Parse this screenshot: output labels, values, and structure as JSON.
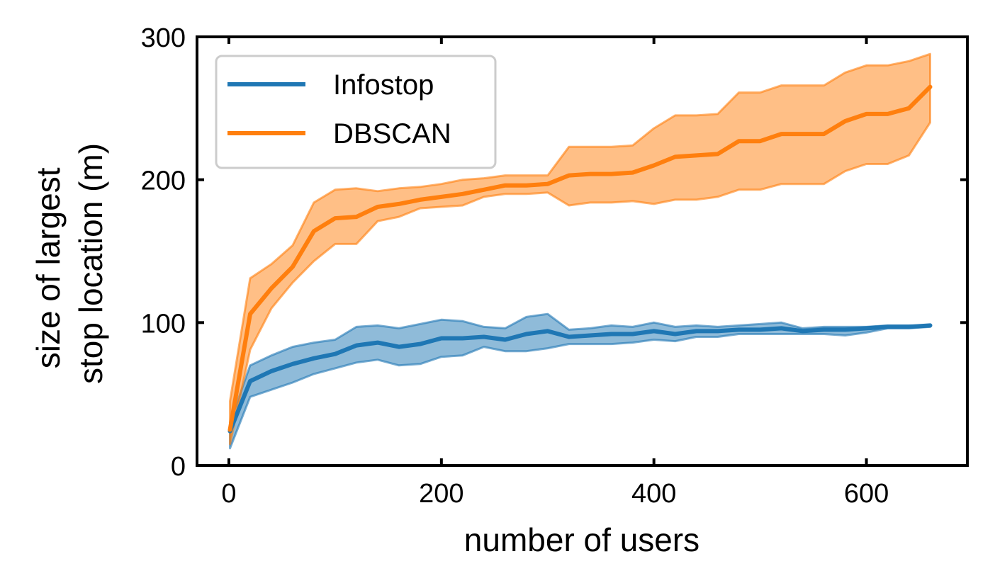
{
  "chart_data": {
    "type": "line",
    "title": "",
    "xlabel": "number of users",
    "ylabel": [
      "size of largest",
      "stop location (m)"
    ],
    "xlim": [
      -30,
      695
    ],
    "ylim": [
      0,
      300
    ],
    "xticks": [
      0,
      200,
      400,
      600
    ],
    "yticks": [
      0,
      100,
      200,
      300
    ],
    "x": [
      1,
      20,
      40,
      60,
      80,
      100,
      120,
      140,
      160,
      180,
      200,
      220,
      240,
      260,
      280,
      300,
      320,
      340,
      360,
      380,
      400,
      420,
      440,
      460,
      480,
      500,
      520,
      540,
      560,
      580,
      600,
      620,
      640,
      660
    ],
    "series": [
      {
        "name": "Infostop",
        "color": "#1f77b4",
        "values": [
          24,
          59,
          66,
          71,
          75,
          78,
          84,
          86,
          83,
          85,
          89,
          89,
          90,
          88,
          92,
          94,
          90,
          91,
          92,
          92,
          94,
          92,
          94,
          94,
          95,
          95,
          96,
          94,
          95,
          95,
          96,
          97,
          97,
          98
        ],
        "upper": [
          30,
          70,
          77,
          83,
          86,
          88,
          97,
          98,
          96,
          99,
          102,
          101,
          97,
          96,
          104,
          106,
          95,
          96,
          98,
          97,
          100,
          97,
          98,
          97,
          98,
          99,
          100,
          96,
          97,
          97,
          97,
          98,
          98,
          98
        ],
        "lower": [
          12,
          48,
          53,
          58,
          64,
          68,
          72,
          74,
          70,
          71,
          76,
          77,
          83,
          80,
          80,
          82,
          85,
          85,
          85,
          86,
          88,
          87,
          90,
          90,
          92,
          92,
          92,
          92,
          92,
          91,
          93,
          96,
          96,
          97
        ]
      },
      {
        "name": "DBSCAN",
        "color": "#ff7f0e",
        "values": [
          25,
          106,
          124,
          139,
          164,
          173,
          174,
          181,
          183,
          186,
          188,
          190,
          193,
          196,
          196,
          197,
          203,
          204,
          204,
          205,
          210,
          216,
          217,
          218,
          227,
          227,
          232,
          232,
          232,
          241,
          246,
          246,
          250,
          265
        ],
        "upper": [
          45,
          131,
          141,
          154,
          184,
          193,
          194,
          192,
          194,
          195,
          197,
          200,
          201,
          203,
          203,
          203,
          223,
          223,
          223,
          224,
          236,
          245,
          245,
          246,
          261,
          261,
          266,
          266,
          266,
          275,
          280,
          280,
          283,
          288
        ],
        "lower": [
          15,
          81,
          110,
          128,
          143,
          155,
          155,
          171,
          174,
          180,
          181,
          182,
          188,
          190,
          190,
          191,
          182,
          184,
          184,
          185,
          183,
          186,
          186,
          188,
          193,
          193,
          197,
          197,
          197,
          206,
          211,
          211,
          217,
          240
        ]
      }
    ],
    "legend": {
      "position": "top-left",
      "entries": [
        "Infostop",
        "DBSCAN"
      ]
    },
    "grid": false
  }
}
